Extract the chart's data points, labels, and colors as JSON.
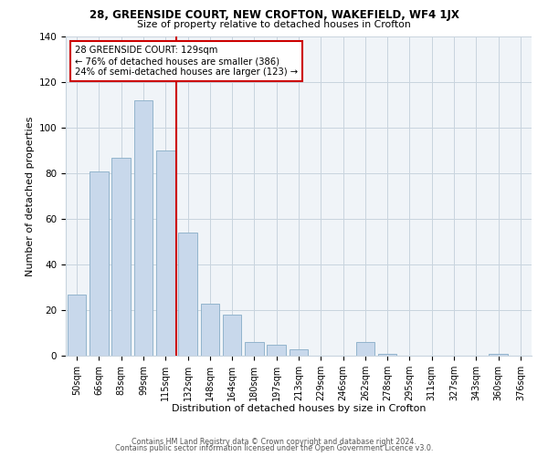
{
  "title1": "28, GREENSIDE COURT, NEW CROFTON, WAKEFIELD, WF4 1JX",
  "title2": "Size of property relative to detached houses in Crofton",
  "xlabel": "Distribution of detached houses by size in Crofton",
  "ylabel": "Number of detached properties",
  "bar_color": "#c8d8eb",
  "bar_edge_color": "#92b4cc",
  "categories": [
    "50sqm",
    "66sqm",
    "83sqm",
    "99sqm",
    "115sqm",
    "132sqm",
    "148sqm",
    "164sqm",
    "180sqm",
    "197sqm",
    "213sqm",
    "229sqm",
    "246sqm",
    "262sqm",
    "278sqm",
    "295sqm",
    "311sqm",
    "327sqm",
    "343sqm",
    "360sqm",
    "376sqm"
  ],
  "values": [
    27,
    81,
    87,
    112,
    90,
    54,
    23,
    18,
    6,
    5,
    3,
    0,
    0,
    6,
    1,
    0,
    0,
    0,
    0,
    1,
    0
  ],
  "vline_x": 4.5,
  "vline_color": "#cc0000",
  "annotation_line1": "28 GREENSIDE COURT: 129sqm",
  "annotation_line2": "← 76% of detached houses are smaller (386)",
  "annotation_line3": "24% of semi-detached houses are larger (123) →",
  "annotation_box_edge": "#cc0000",
  "ylim": [
    0,
    140
  ],
  "yticks": [
    0,
    20,
    40,
    60,
    80,
    100,
    120,
    140
  ],
  "footer1": "Contains HM Land Registry data © Crown copyright and database right 2024.",
  "footer2": "Contains public sector information licensed under the Open Government Licence v3.0.",
  "bg_color": "#f0f4f8",
  "grid_color": "#c8d4de"
}
